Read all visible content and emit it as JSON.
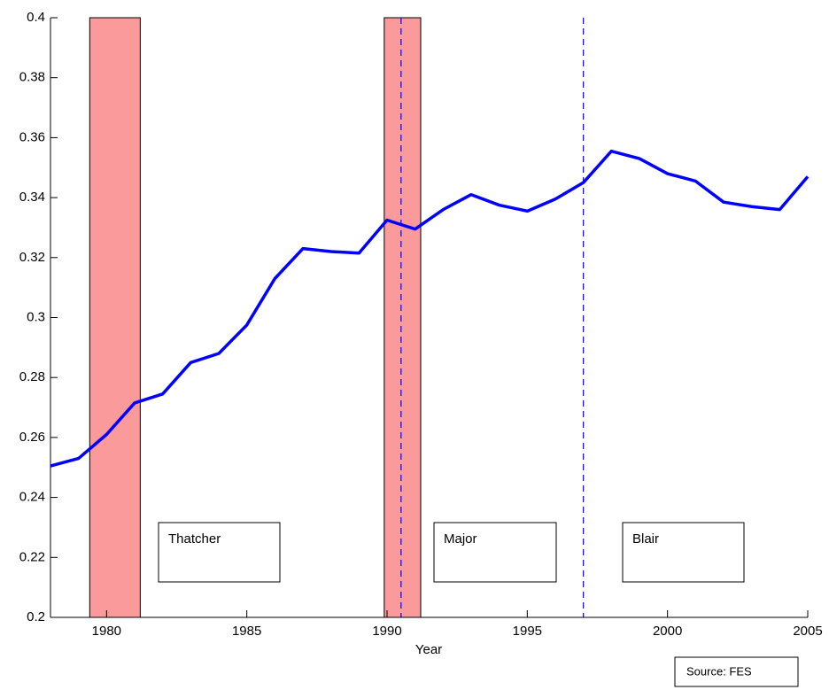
{
  "chart_data": {
    "type": "line",
    "x_label": "Year",
    "x": [
      1978,
      1979,
      1980,
      1981,
      1982,
      1983,
      1984,
      1985,
      1986,
      1987,
      1988,
      1989,
      1990,
      1991,
      1992,
      1993,
      1994,
      1995,
      1996,
      1997,
      1998,
      1999,
      2000,
      2001,
      2002,
      2003,
      2004,
      2005
    ],
    "series": [
      {
        "color": "#0000ff",
        "values": [
          0.2505,
          0.253,
          0.261,
          0.2715,
          0.2745,
          0.285,
          0.288,
          0.2975,
          0.313,
          0.323,
          0.322,
          0.3215,
          0.3325,
          0.3295,
          0.336,
          0.341,
          0.3375,
          0.3355,
          0.3395,
          0.345,
          0.3555,
          0.353,
          0.348,
          0.3455,
          0.3385,
          0.337,
          0.336,
          0.347
        ]
      }
    ],
    "xlim": [
      1978,
      2005
    ],
    "xticks": [
      1980,
      1985,
      1990,
      1995,
      2000,
      2005
    ],
    "ylim": [
      0.2,
      0.4
    ],
    "yticks": [
      0.2,
      0.22,
      0.24,
      0.26,
      0.28,
      0.3,
      0.32,
      0.34,
      0.36,
      0.38,
      0.4
    ],
    "shaded_regions": [
      [
        1979.4,
        1981.2
      ],
      [
        1989.9,
        1991.2
      ]
    ],
    "shade_color": "#fa9a9a",
    "vlines": [
      1990.5,
      1997
    ],
    "vline_color": "#0000ff",
    "annotations": [
      "Thatcher",
      "Major",
      "Blair"
    ],
    "source": "Source: FES"
  }
}
